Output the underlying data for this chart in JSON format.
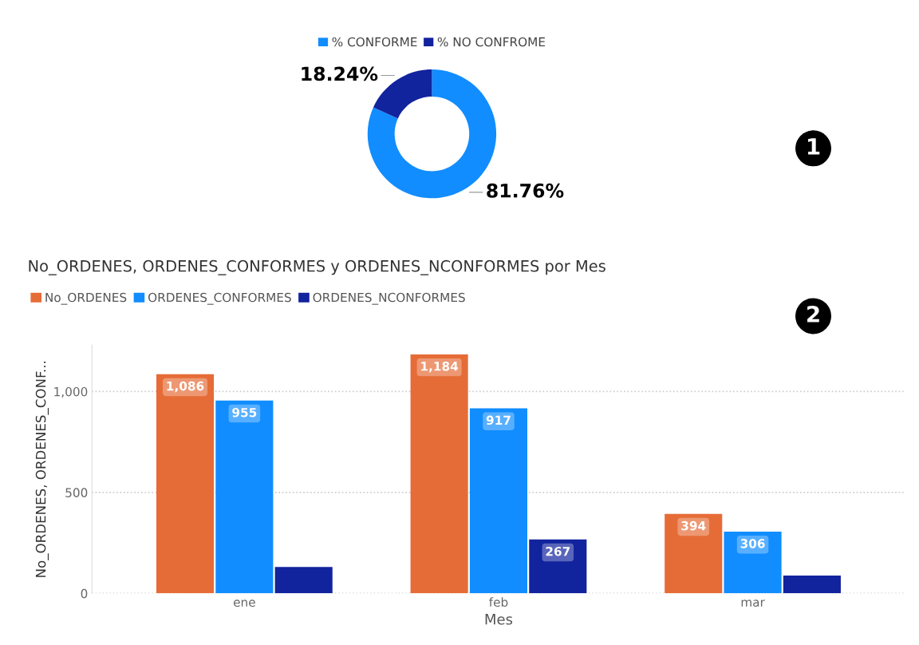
{
  "chart_data": [
    {
      "type": "donut",
      "categories": [
        "% CONFORME",
        "% NO CONFROME"
      ],
      "values": [
        81.76,
        18.24
      ],
      "colors": [
        "#118dff",
        "#12239e"
      ],
      "value_labels": [
        "81.76%",
        "18.24%"
      ],
      "legend": "top",
      "annotations": [
        "1"
      ]
    },
    {
      "type": "bar",
      "title": "No_ORDENES, ORDENES_CONFORMES y ORDENES_NCONFORMES por Mes",
      "xlabel": "Mes",
      "ylabel": "No_ORDENES, ORDENES_CONF...",
      "categories": [
        "ene",
        "feb",
        "mar"
      ],
      "ylim": [
        0,
        1230
      ],
      "yticks": [
        0,
        {
          "value": 500,
          "label": "500"
        },
        {
          "value": 1000,
          "label": "1,000"
        }
      ],
      "grid": "y",
      "legend": "top left",
      "series": [
        {
          "name": "No_ORDENES",
          "color": "#e66c37",
          "values": [
            1086,
            1184,
            394
          ],
          "value_labels": [
            "1,086",
            "1,184",
            "394"
          ]
        },
        {
          "name": "ORDENES_CONFORMES",
          "color": "#118dff",
          "values": [
            955,
            917,
            306
          ],
          "value_labels": [
            "955",
            "917",
            "306"
          ]
        },
        {
          "name": "ORDENES_NCONFORMES",
          "color": "#12239e",
          "values": [
            131,
            267,
            88
          ],
          "value_labels": [
            null,
            "267",
            null
          ]
        }
      ],
      "annotations": [
        "2"
      ]
    }
  ]
}
